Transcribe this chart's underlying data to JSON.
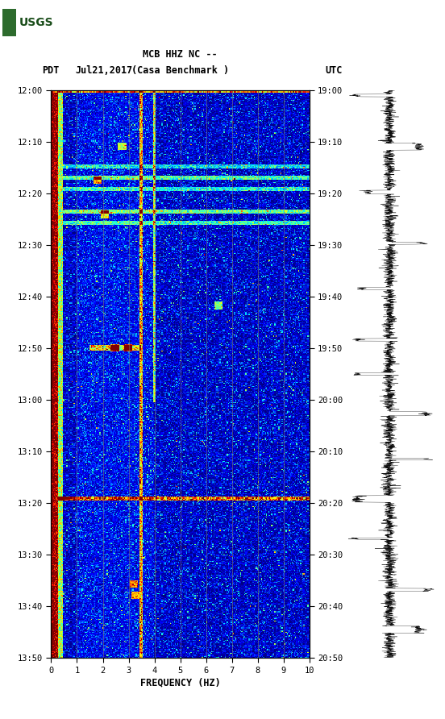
{
  "title_line1": "MCB HHZ NC --",
  "title_line2": "(Casa Benchmark )",
  "label_left": "PDT",
  "label_date": "Jul21,2017",
  "label_right": "UTC",
  "xlabel": "FREQUENCY (HZ)",
  "x_min": 0,
  "x_max": 10,
  "x_ticks": [
    0,
    1,
    2,
    3,
    4,
    5,
    6,
    7,
    8,
    9,
    10
  ],
  "y_ticks_pdt": [
    "12:00",
    "12:10",
    "12:20",
    "12:30",
    "12:40",
    "12:50",
    "13:00",
    "13:10",
    "13:20",
    "13:30",
    "13:40",
    "13:50"
  ],
  "y_ticks_utc": [
    "19:00",
    "19:10",
    "19:20",
    "19:30",
    "19:40",
    "19:50",
    "20:00",
    "20:10",
    "20:20",
    "20:30",
    "20:40",
    "20:50"
  ],
  "bg_color": "white",
  "fig_width": 5.52,
  "fig_height": 8.92,
  "vertical_lines_x": [
    1.0,
    2.0,
    3.0,
    4.0,
    5.0,
    6.0,
    7.0,
    8.0,
    9.0
  ],
  "vertical_lines_color": "#888866",
  "noise_seed": 42,
  "usgs_green": "#2d6b2d"
}
